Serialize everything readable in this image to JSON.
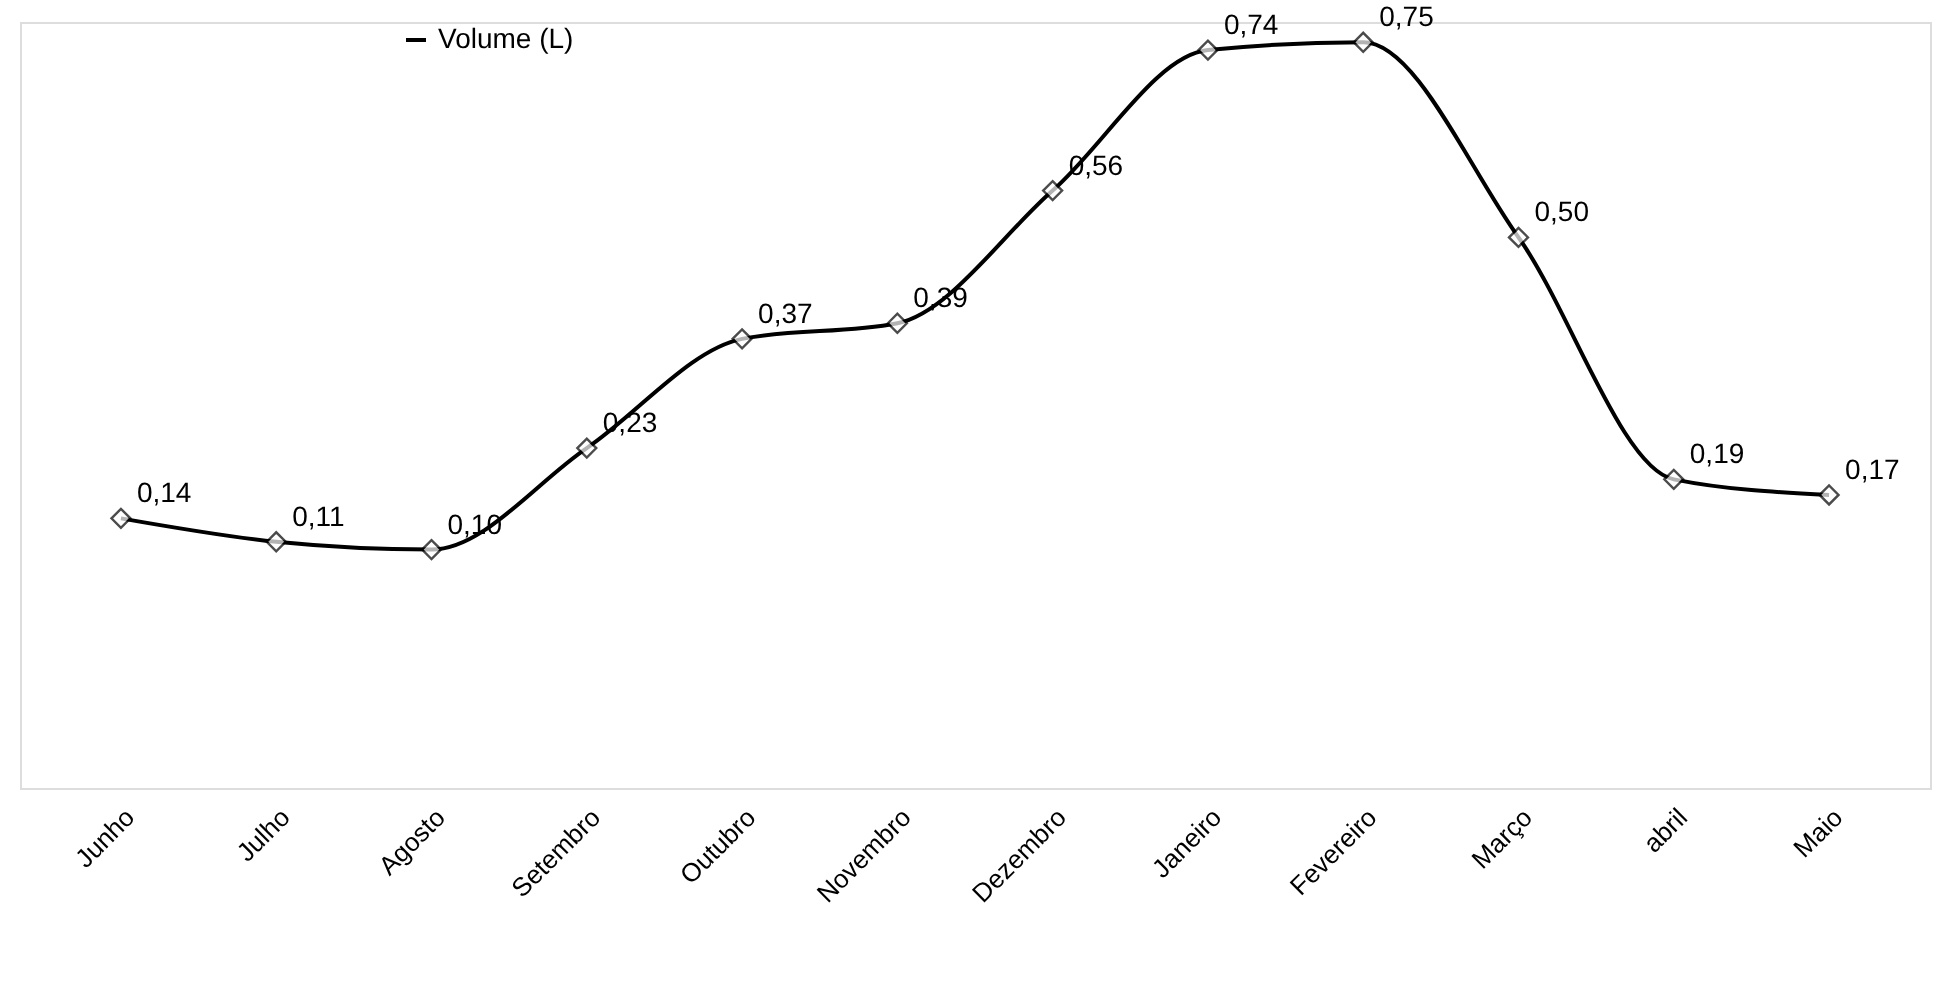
{
  "chart_data": {
    "type": "line",
    "categories": [
      "Junho",
      "Julho",
      "Agosto",
      "Setembro",
      "Outubro",
      "Novembro",
      "Dezembro",
      "Janeiro",
      "Fevereiro",
      "Março",
      "abril",
      "Maio"
    ],
    "series": [
      {
        "name": "Volume (L)",
        "color": "#000000",
        "values": [
          0.14,
          0.11,
          0.1,
          0.23,
          0.37,
          0.39,
          0.56,
          0.74,
          0.75,
          0.5,
          0.19,
          0.17
        ],
        "value_labels": [
          "0,14",
          "0,11",
          "0,10",
          "0,23",
          "0,37",
          "0,39",
          "0,56",
          "0,74",
          "0,75",
          "0,50",
          "0,19",
          "0,17"
        ]
      }
    ],
    "marker": "diamond",
    "line_style": "solid",
    "legend": "top",
    "grid": false
  }
}
